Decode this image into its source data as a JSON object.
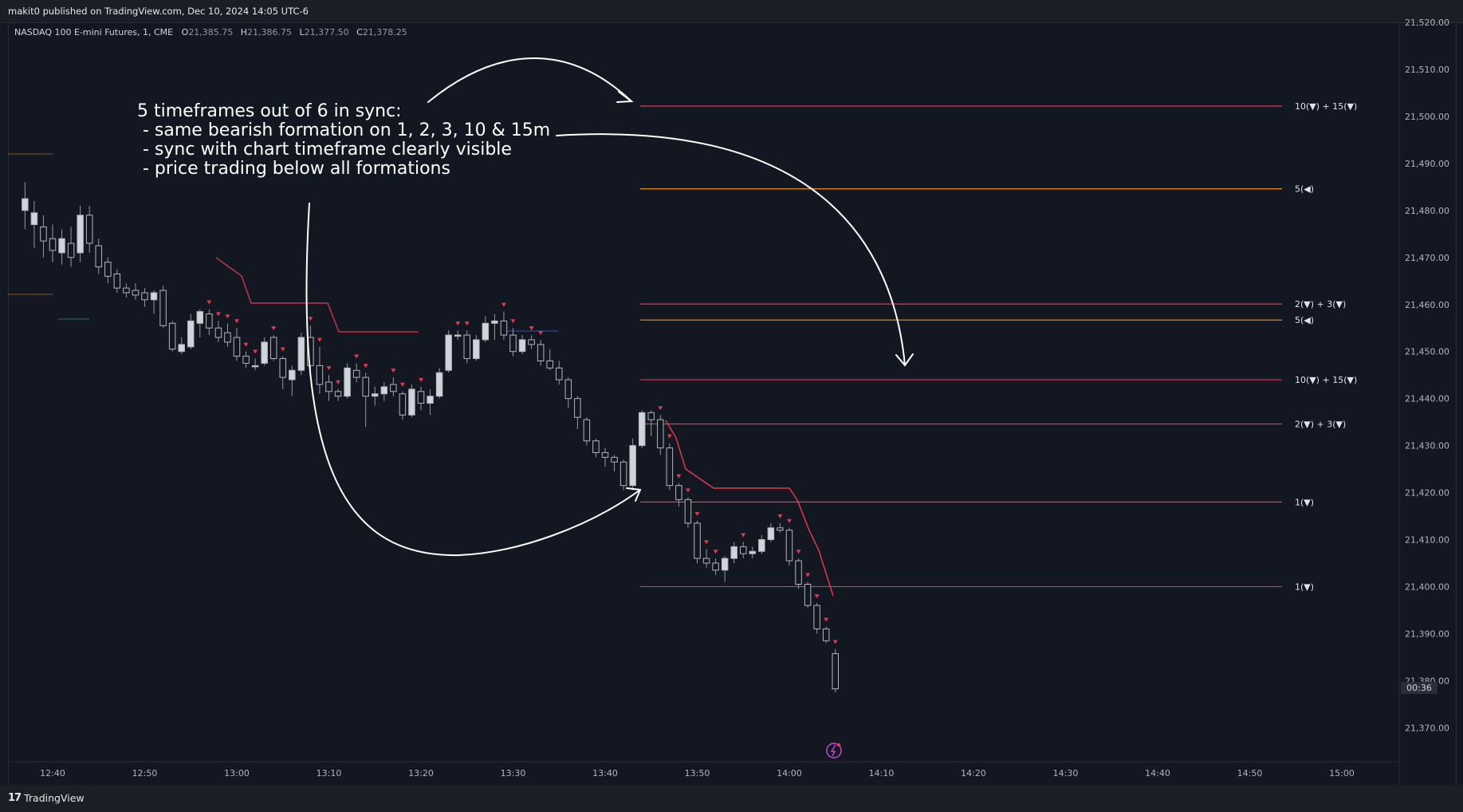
{
  "header": {
    "published_text": "makit0 published on TradingView.com, Dec 10, 2024 14:05 UTC-6"
  },
  "symbol": {
    "name": "NASDAQ 100 E-mini Futures, 1, CME",
    "open_label": "O",
    "open": "21,385.75",
    "high_label": "H",
    "high": "21,386.75",
    "low_label": "L",
    "low": "21,377.50",
    "close_label": "C",
    "close": "21,378.25"
  },
  "annotation": {
    "line1": "5 timeframes out of 6 in sync:",
    "line2": " - same bearish formation on 1, 2, 3, 10 & 15m",
    "line3": " - sync with chart timeframe clearly visible",
    "line4": " - price trading below all formations"
  },
  "countdown": "00:36",
  "footer": {
    "brand": "TradingView"
  },
  "colors": {
    "background": "#131722",
    "up_candle": "#d1d4dc",
    "down_candle": "#131722",
    "bearish_line": "#e03a4e",
    "orange_line": "#f0932b",
    "triangle": "#e03a4e"
  },
  "chart_data": {
    "type": "candlestick",
    "title": "NASDAQ 100 E-mini Futures, 1, CME",
    "ylim": [
      21365,
      21522
    ],
    "y_ticks": [
      "21,370.00",
      "21,380.00",
      "21,390.00",
      "21,400.00",
      "21,410.00",
      "21,420.00",
      "21,430.00",
      "21,440.00",
      "21,450.00",
      "21,460.00",
      "21,470.00",
      "21,480.00",
      "21,490.00",
      "21,500.00",
      "21,510.00",
      "21,520.00"
    ],
    "x_ticks": [
      "12:40",
      "12:50",
      "13:00",
      "13:10",
      "13:20",
      "13:30",
      "13:40",
      "13:50",
      "14:00",
      "14:10",
      "14:20",
      "14:30",
      "14:40",
      "14:50",
      "15:00"
    ],
    "levels": [
      {
        "label": "10(▼) + 15(▼)",
        "price": 21502.2,
        "color": "#e03a4e"
      },
      {
        "label": "5(◀)",
        "price": 21484.6,
        "color": "#f0932b"
      },
      {
        "label": "2(▼) + 3(▼)",
        "price": 21460.1,
        "color": "#e03a4e"
      },
      {
        "label": "5(◀)",
        "price": 21456.7,
        "color": "#f0932b"
      },
      {
        "label": "10(▼) + 15(▼)",
        "price": 21444.0,
        "color": "#e03a4e"
      },
      {
        "label": "2(▼) + 3(▼)",
        "price": 21434.6,
        "color": "#e03a4e"
      },
      {
        "label": "1(▼)",
        "price": 21418.0,
        "color": "#e03a4e"
      },
      {
        "label": "1(▼)",
        "price": 21400.0,
        "color": "#e03a4e"
      }
    ],
    "candles": [
      {
        "t": "12:37",
        "o": 21480.0,
        "h": 21486.0,
        "l": 21476.0,
        "c": 21482.5
      },
      {
        "t": "12:38",
        "o": 21477.0,
        "h": 21482.0,
        "l": 21472.0,
        "c": 21479.5
      },
      {
        "t": "12:39",
        "o": 21476.5,
        "h": 21479.0,
        "l": 21470.0,
        "c": 21473.5
      },
      {
        "t": "12:40",
        "o": 21474.0,
        "h": 21477.0,
        "l": 21469.0,
        "c": 21471.5
      },
      {
        "t": "12:41",
        "o": 21471.0,
        "h": 21476.0,
        "l": 21468.5,
        "c": 21474.0
      },
      {
        "t": "12:42",
        "o": 21473.0,
        "h": 21476.5,
        "l": 21468.0,
        "c": 21470.0
      },
      {
        "t": "12:43",
        "o": 21471.0,
        "h": 21481.0,
        "l": 21469.0,
        "c": 21479.0
      },
      {
        "t": "12:44",
        "o": 21479.0,
        "h": 21481.0,
        "l": 21471.0,
        "c": 21473.0
      },
      {
        "t": "12:45",
        "o": 21472.5,
        "h": 21474.0,
        "l": 21466.5,
        "c": 21468.0
      },
      {
        "t": "12:46",
        "o": 21469.0,
        "h": 21470.0,
        "l": 21464.5,
        "c": 21466.0
      },
      {
        "t": "12:47",
        "o": 21466.5,
        "h": 21467.5,
        "l": 21462.5,
        "c": 21463.5
      },
      {
        "t": "12:48",
        "o": 21463.5,
        "h": 21464.5,
        "l": 21461.5,
        "c": 21462.5
      },
      {
        "t": "12:49",
        "o": 21463.0,
        "h": 21464.5,
        "l": 21461.0,
        "c": 21462.0
      },
      {
        "t": "12:50",
        "o": 21462.5,
        "h": 21463.5,
        "l": 21459.5,
        "c": 21461.0
      },
      {
        "t": "12:51",
        "o": 21461.0,
        "h": 21463.0,
        "l": 21458.0,
        "c": 21462.5
      },
      {
        "t": "12:52",
        "o": 21463.0,
        "h": 21464.0,
        "l": 21455.0,
        "c": 21455.5
      },
      {
        "t": "12:53",
        "o": 21456.0,
        "h": 21456.5,
        "l": 21450.0,
        "c": 21450.5
      },
      {
        "t": "12:54",
        "o": 21450.0,
        "h": 21453.0,
        "l": 21449.5,
        "c": 21451.5
      },
      {
        "t": "12:55",
        "o": 21451.0,
        "h": 21458.0,
        "l": 21450.5,
        "c": 21456.5
      },
      {
        "t": "12:56",
        "o": 21456.0,
        "h": 21459.0,
        "l": 21453.0,
        "c": 21458.5
      },
      {
        "t": "12:57",
        "o": 21458.0,
        "h": 21459.0,
        "l": 21453.5,
        "c": 21455.0
      },
      {
        "t": "12:58",
        "o": 21455.0,
        "h": 21456.5,
        "l": 21452.0,
        "c": 21453.0
      },
      {
        "t": "12:59",
        "o": 21454.0,
        "h": 21456.0,
        "l": 21451.0,
        "c": 21452.0
      },
      {
        "t": "13:00",
        "o": 21453.0,
        "h": 21455.0,
        "l": 21448.0,
        "c": 21449.0
      },
      {
        "t": "13:01",
        "o": 21449.0,
        "h": 21450.0,
        "l": 21446.5,
        "c": 21447.5
      },
      {
        "t": "13:02",
        "o": 21447.0,
        "h": 21448.5,
        "l": 21446.0,
        "c": 21447.0
      },
      {
        "t": "13:03",
        "o": 21447.5,
        "h": 21453.0,
        "l": 21447.0,
        "c": 21452.0
      },
      {
        "t": "13:04",
        "o": 21453.0,
        "h": 21453.5,
        "l": 21448.0,
        "c": 21448.5
      },
      {
        "t": "13:05",
        "o": 21448.5,
        "h": 21449.0,
        "l": 21442.0,
        "c": 21444.5
      },
      {
        "t": "13:06",
        "o": 21444.0,
        "h": 21447.0,
        "l": 21440.5,
        "c": 21446.0
      },
      {
        "t": "13:07",
        "o": 21446.0,
        "h": 21454.0,
        "l": 21445.0,
        "c": 21453.0
      },
      {
        "t": "13:08",
        "o": 21453.0,
        "h": 21455.5,
        "l": 21446.0,
        "c": 21447.0
      },
      {
        "t": "13:09",
        "o": 21447.0,
        "h": 21451.0,
        "l": 21441.0,
        "c": 21443.0
      },
      {
        "t": "13:10",
        "o": 21443.5,
        "h": 21445.0,
        "l": 21439.5,
        "c": 21441.5
      },
      {
        "t": "13:11",
        "o": 21441.5,
        "h": 21442.0,
        "l": 21439.5,
        "c": 21440.5
      },
      {
        "t": "13:12",
        "o": 21440.5,
        "h": 21447.5,
        "l": 21440.0,
        "c": 21446.5
      },
      {
        "t": "13:13",
        "o": 21446.0,
        "h": 21447.5,
        "l": 21443.5,
        "c": 21444.5
      },
      {
        "t": "13:14",
        "o": 21444.5,
        "h": 21445.5,
        "l": 21434.0,
        "c": 21440.5
      },
      {
        "t": "13:15",
        "o": 21440.5,
        "h": 21442.5,
        "l": 21438.5,
        "c": 21441.0
      },
      {
        "t": "13:16",
        "o": 21441.0,
        "h": 21443.5,
        "l": 21439.5,
        "c": 21442.5
      },
      {
        "t": "13:17",
        "o": 21443.0,
        "h": 21444.5,
        "l": 21440.5,
        "c": 21441.5
      },
      {
        "t": "13:18",
        "o": 21441.0,
        "h": 21441.5,
        "l": 21435.5,
        "c": 21436.5
      },
      {
        "t": "13:19",
        "o": 21436.5,
        "h": 21443.0,
        "l": 21436.0,
        "c": 21442.0
      },
      {
        "t": "13:20",
        "o": 21441.5,
        "h": 21442.5,
        "l": 21437.5,
        "c": 21439.0
      },
      {
        "t": "13:21",
        "o": 21439.0,
        "h": 21442.0,
        "l": 21436.5,
        "c": 21440.5
      },
      {
        "t": "13:22",
        "o": 21440.5,
        "h": 21446.5,
        "l": 21440.0,
        "c": 21445.5
      },
      {
        "t": "13:23",
        "o": 21446.0,
        "h": 21454.5,
        "l": 21445.5,
        "c": 21453.5
      },
      {
        "t": "13:24",
        "o": 21453.5,
        "h": 21454.5,
        "l": 21452.5,
        "c": 21453.5
      },
      {
        "t": "13:25",
        "o": 21453.5,
        "h": 21454.5,
        "l": 21447.5,
        "c": 21448.5
      },
      {
        "t": "13:26",
        "o": 21448.5,
        "h": 21453.5,
        "l": 21448.0,
        "c": 21452.5
      },
      {
        "t": "13:27",
        "o": 21452.5,
        "h": 21457.5,
        "l": 21452.0,
        "c": 21456.0
      },
      {
        "t": "13:28",
        "o": 21456.0,
        "h": 21458.0,
        "l": 21452.5,
        "c": 21456.5
      },
      {
        "t": "13:29",
        "o": 21456.5,
        "h": 21458.5,
        "l": 21452.5,
        "c": 21453.5
      },
      {
        "t": "13:30",
        "o": 21453.5,
        "h": 21455.0,
        "l": 21449.0,
        "c": 21450.0
      },
      {
        "t": "13:31",
        "o": 21450.0,
        "h": 21453.5,
        "l": 21449.5,
        "c": 21452.5
      },
      {
        "t": "13:32",
        "o": 21452.5,
        "h": 21453.5,
        "l": 21450.5,
        "c": 21451.5
      },
      {
        "t": "13:33",
        "o": 21451.5,
        "h": 21452.5,
        "l": 21447.0,
        "c": 21448.0
      },
      {
        "t": "13:34",
        "o": 21448.0,
        "h": 21450.5,
        "l": 21446.0,
        "c": 21446.5
      },
      {
        "t": "13:35",
        "o": 21446.5,
        "h": 21448.0,
        "l": 21443.0,
        "c": 21444.0
      },
      {
        "t": "13:36",
        "o": 21444.0,
        "h": 21444.5,
        "l": 21438.0,
        "c": 21440.0
      },
      {
        "t": "13:37",
        "o": 21440.0,
        "h": 21440.5,
        "l": 21433.5,
        "c": 21436.0
      },
      {
        "t": "13:38",
        "o": 21435.5,
        "h": 21436.0,
        "l": 21430.0,
        "c": 21431.0
      },
      {
        "t": "13:39",
        "o": 21431.0,
        "h": 21431.5,
        "l": 21427.5,
        "c": 21428.5
      },
      {
        "t": "13:40",
        "o": 21428.5,
        "h": 21429.5,
        "l": 21425.5,
        "c": 21427.5
      },
      {
        "t": "13:41",
        "o": 21427.5,
        "h": 21428.0,
        "l": 21424.5,
        "c": 21426.5
      },
      {
        "t": "13:42",
        "o": 21426.5,
        "h": 21427.0,
        "l": 21420.5,
        "c": 21421.5
      },
      {
        "t": "13:43",
        "o": 21421.5,
        "h": 21431.5,
        "l": 21420.5,
        "c": 21430.0
      },
      {
        "t": "13:44",
        "o": 21430.0,
        "h": 21437.5,
        "l": 21429.5,
        "c": 21437.0
      },
      {
        "t": "13:45",
        "o": 21437.0,
        "h": 21437.5,
        "l": 21432.0,
        "c": 21435.5
      },
      {
        "t": "13:46",
        "o": 21435.5,
        "h": 21436.5,
        "l": 21428.0,
        "c": 21429.5
      },
      {
        "t": "13:47",
        "o": 21429.5,
        "h": 21430.5,
        "l": 21420.5,
        "c": 21421.5
      },
      {
        "t": "13:48",
        "o": 21421.5,
        "h": 21422.0,
        "l": 21417.0,
        "c": 21418.5
      },
      {
        "t": "13:49",
        "o": 21418.5,
        "h": 21419.0,
        "l": 21412.5,
        "c": 21413.5
      },
      {
        "t": "13:50",
        "o": 21413.5,
        "h": 21414.0,
        "l": 21405.0,
        "c": 21406.0
      },
      {
        "t": "13:51",
        "o": 21406.0,
        "h": 21408.0,
        "l": 21404.0,
        "c": 21405.0
      },
      {
        "t": "13:52",
        "o": 21405.0,
        "h": 21406.0,
        "l": 21402.5,
        "c": 21403.5
      },
      {
        "t": "13:53",
        "o": 21403.5,
        "h": 21406.5,
        "l": 21401.0,
        "c": 21406.0
      },
      {
        "t": "13:54",
        "o": 21406.0,
        "h": 21409.5,
        "l": 21405.0,
        "c": 21408.5
      },
      {
        "t": "13:55",
        "o": 21408.5,
        "h": 21409.5,
        "l": 21406.0,
        "c": 21407.0
      },
      {
        "t": "13:56",
        "o": 21407.0,
        "h": 21408.5,
        "l": 21406.0,
        "c": 21407.5
      },
      {
        "t": "13:57",
        "o": 21407.5,
        "h": 21411.0,
        "l": 21407.0,
        "c": 21410.0
      },
      {
        "t": "13:58",
        "o": 21410.0,
        "h": 21413.5,
        "l": 21409.5,
        "c": 21412.5
      },
      {
        "t": "13:59",
        "o": 21412.5,
        "h": 21413.5,
        "l": 21411.5,
        "c": 21412.0
      },
      {
        "t": "14:00",
        "o": 21412.0,
        "h": 21412.5,
        "l": 21404.5,
        "c": 21405.5
      },
      {
        "t": "14:01",
        "o": 21405.5,
        "h": 21406.0,
        "l": 21399.5,
        "c": 21400.5
      },
      {
        "t": "14:02",
        "o": 21400.5,
        "h": 21401.0,
        "l": 21395.5,
        "c": 21396.0
      },
      {
        "t": "14:03",
        "o": 21396.0,
        "h": 21396.5,
        "l": 21390.0,
        "c": 21391.0
      },
      {
        "t": "14:04",
        "o": 21391.0,
        "h": 21391.5,
        "l": 21388.0,
        "c": 21388.5
      },
      {
        "t": "14:05",
        "o": 21385.75,
        "h": 21386.75,
        "l": 21377.5,
        "c": 21378.25
      }
    ]
  }
}
